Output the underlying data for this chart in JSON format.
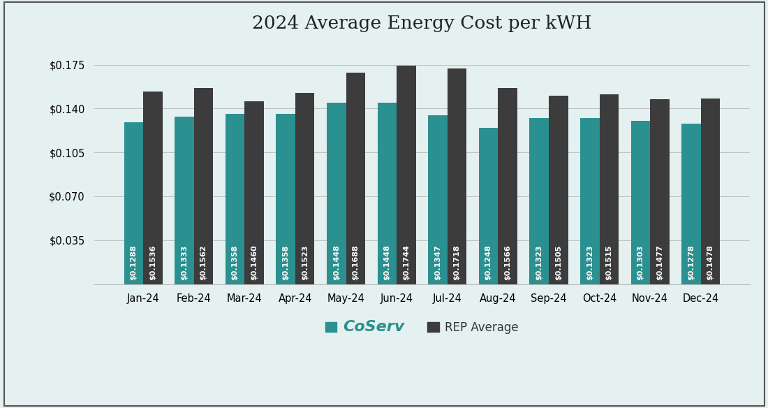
{
  "title": "2024 Average Energy Cost per kWH",
  "months": [
    "Jan-24",
    "Feb-24",
    "Mar-24",
    "Apr-24",
    "May-24",
    "Jun-24",
    "Jul-24",
    "Aug-24",
    "Sep-24",
    "Oct-24",
    "Nov-24",
    "Dec-24"
  ],
  "coserv_values": [
    0.1288,
    0.1333,
    0.1358,
    0.1358,
    0.1448,
    0.1448,
    0.1347,
    0.1248,
    0.1323,
    0.1323,
    0.1303,
    0.1278
  ],
  "rep_values": [
    0.1536,
    0.1562,
    0.146,
    0.1523,
    0.1688,
    0.1744,
    0.1718,
    0.1566,
    0.1505,
    0.1515,
    0.1477,
    0.1478
  ],
  "coserv_color": "#2a9090",
  "rep_color": "#3c3c3c",
  "background_color": "#e5f0f0",
  "text_color_white": "#ffffff",
  "ylim": [
    0,
    0.193
  ],
  "yticks": [
    0.035,
    0.07,
    0.105,
    0.14,
    0.175
  ],
  "bar_width": 0.38,
  "title_fontsize": 19,
  "label_fontsize": 8.0,
  "tick_fontsize": 10.5,
  "legend_fontsize": 12,
  "coserv_label": "CoServ",
  "rep_label": "REP Average",
  "border_color": "#555555"
}
